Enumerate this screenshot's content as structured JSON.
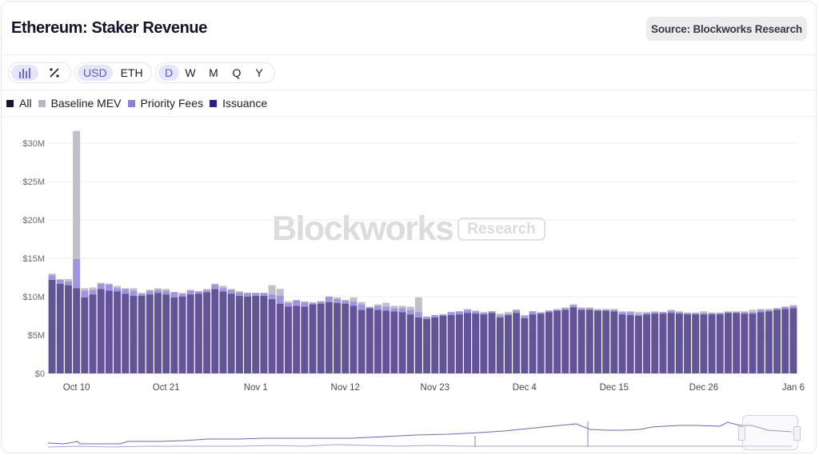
{
  "header": {
    "title": "Ethereum: Staker Revenue",
    "source_label": "Source: Blockworks Research"
  },
  "toolbar": {
    "chart_type_icons": [
      "bar-chart-icon",
      "percent-icon"
    ],
    "units": [
      "USD",
      "ETH"
    ],
    "units_selected": "USD",
    "intervals": [
      "D",
      "W",
      "M",
      "Q",
      "Y"
    ],
    "interval_selected": "D"
  },
  "legend": [
    {
      "label": "All",
      "color": "#1a1530"
    },
    {
      "label": "Baseline MEV",
      "color": "#b9b6c3"
    },
    {
      "label": "Priority Fees",
      "color": "#8c80d8"
    },
    {
      "label": "Issuance",
      "color": "#2d2080"
    }
  ],
  "watermark": {
    "brand": "Blockworks",
    "tag": "Research"
  },
  "chart_data": {
    "type": "bar",
    "stacked": true,
    "title": "Ethereum: Staker Revenue",
    "date_range": [
      "2024-10-07",
      "2025-01-06"
    ],
    "x_tick_labels": [
      "Oct 10",
      "Oct 21",
      "Nov 1",
      "Nov 12",
      "Nov 23",
      "Dec 4",
      "Dec 15",
      "Dec 26",
      "Jan 6"
    ],
    "y_tick_labels": [
      "$0",
      "$5M",
      "$10M",
      "$15M",
      "$20M",
      "$25M",
      "$30M"
    ],
    "y_ticks": [
      0,
      5,
      10,
      15,
      20,
      25,
      30
    ],
    "ylim": [
      0,
      32
    ],
    "y_unit": "USD millions",
    "grid": true,
    "legend_position": "top-left",
    "series": [
      {
        "name": "Issuance",
        "color": "#5b4b92",
        "values": [
          12.2,
          11.7,
          11.5,
          11.1,
          9.9,
          10.3,
          11.0,
          10.8,
          10.7,
          10.4,
          10.1,
          10.1,
          10.3,
          10.5,
          10.3,
          9.9,
          10.0,
          10.3,
          10.4,
          10.6,
          11.0,
          10.7,
          10.4,
          10.1,
          10.0,
          10.1,
          10.1,
          9.7,
          9.1,
          8.7,
          8.8,
          8.7,
          9.0,
          9.1,
          9.3,
          9.2,
          9.1,
          8.8,
          8.3,
          8.5,
          8.3,
          8.2,
          8.1,
          8.0,
          7.7,
          7.3,
          7.1,
          7.3,
          7.5,
          7.6,
          7.7,
          7.9,
          7.8,
          7.7,
          7.9,
          7.3,
          7.6,
          7.9,
          7.2,
          7.7,
          7.8,
          8.0,
          8.2,
          8.3,
          8.6,
          8.3,
          8.3,
          8.2,
          8.2,
          8.1,
          7.7,
          7.6,
          7.5,
          7.7,
          7.8,
          7.8,
          7.9,
          7.8,
          7.7,
          7.7,
          7.7,
          7.7,
          7.7,
          7.9,
          7.9,
          7.8,
          7.8,
          8.0,
          8.1,
          8.3,
          8.4,
          8.5
        ]
      },
      {
        "name": "Priority Fees",
        "color": "#9c90e2",
        "values": [
          0.6,
          0.5,
          0.5,
          3.8,
          0.9,
          0.6,
          0.7,
          0.8,
          0.4,
          0.6,
          0.7,
          0.3,
          0.5,
          0.4,
          0.5,
          0.7,
          0.4,
          0.5,
          0.3,
          0.3,
          0.6,
          0.4,
          0.5,
          0.5,
          0.5,
          0.4,
          0.4,
          0.6,
          1.0,
          0.5,
          0.7,
          0.6,
          0.2,
          0.3,
          0.7,
          0.5,
          0.4,
          0.6,
          0.7,
          0.1,
          0.5,
          0.5,
          0.4,
          0.5,
          0.6,
          0.7,
          0.3,
          0.3,
          0.2,
          0.4,
          0.4,
          0.4,
          0.3,
          0.2,
          0.2,
          0.3,
          0.2,
          0.4,
          0.3,
          0.4,
          0.1,
          0.2,
          0.1,
          0.2,
          0.3,
          0.2,
          0.2,
          0.1,
          0.1,
          0.2,
          0.3,
          0.4,
          0.2,
          0.2,
          0.2,
          0.2,
          0.3,
          0.2,
          0.2,
          0.2,
          0.2,
          0.2,
          0.2,
          0.1,
          0.1,
          0.2,
          0.2,
          0.3,
          0.2,
          0.2,
          0.3,
          0.3
        ]
      },
      {
        "name": "Baseline MEV",
        "color": "#bfbcc8",
        "values": [
          0.2,
          0.1,
          0.3,
          16.7,
          0.3,
          0.3,
          0.1,
          0.1,
          0.3,
          0.1,
          0.3,
          0.1,
          0.1,
          0.2,
          0.2,
          0.0,
          0.1,
          0.1,
          0.0,
          0.1,
          0.1,
          0.3,
          0.1,
          0.1,
          0.0,
          0.0,
          0.0,
          1.2,
          0.9,
          0.2,
          0.1,
          0.1,
          0.1,
          0.0,
          0.0,
          0.2,
          0.1,
          0.5,
          0.3,
          0.1,
          0.2,
          0.5,
          0.3,
          0.3,
          0.4,
          1.9,
          0.0,
          0.0,
          0.0,
          0.0,
          0.0,
          0.1,
          0.1,
          0.1,
          0.0,
          0.2,
          0.2,
          0.0,
          0.1,
          0.0,
          0.1,
          0.0,
          0.1,
          0.1,
          0.1,
          0.1,
          0.1,
          0.1,
          0.1,
          0.1,
          0.1,
          0.1,
          0.3,
          0.1,
          0.1,
          0.0,
          0.1,
          0.1,
          0.0,
          0.0,
          0.2,
          0.0,
          0.0,
          0.1,
          0.1,
          0.1,
          0.3,
          0.1,
          0.1,
          0.0,
          0.0,
          0.1
        ]
      }
    ]
  }
}
